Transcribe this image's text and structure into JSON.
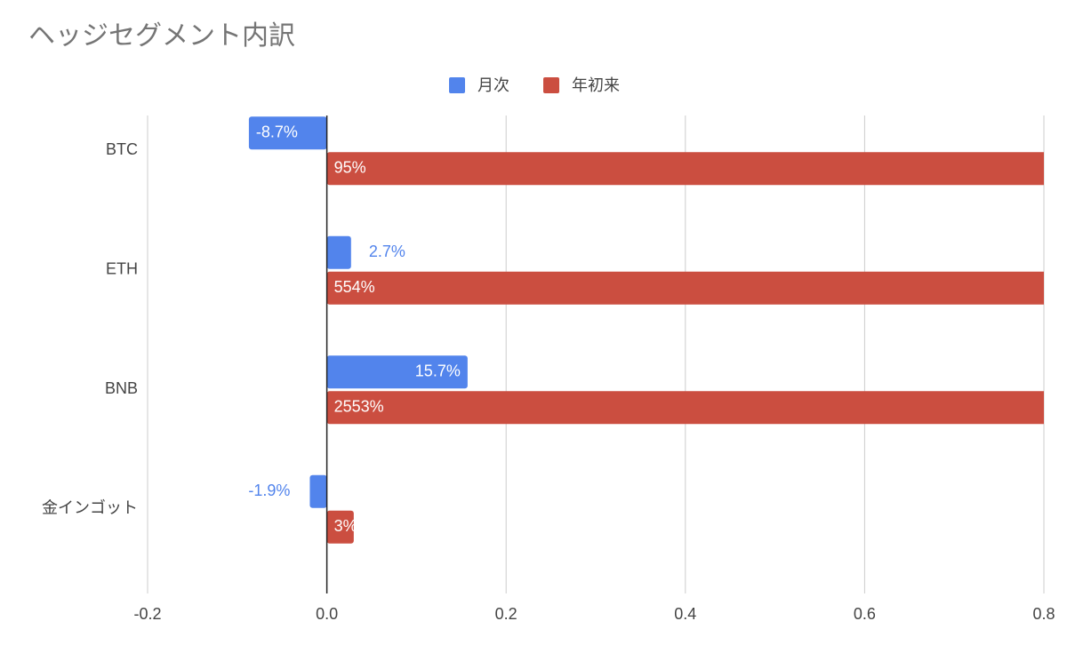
{
  "chart_data": {
    "type": "bar",
    "orientation": "horizontal",
    "title": "ヘッジセグメント内訳",
    "categories": [
      "BTC",
      "ETH",
      "BNB",
      "金インゴット"
    ],
    "series": [
      {
        "name": "月次",
        "color": "#5284ec",
        "values": [
          -0.087,
          0.027,
          0.157,
          -0.019
        ],
        "value_labels": [
          "-8.7%",
          "2.7%",
          "15.7%",
          "-1.9%"
        ]
      },
      {
        "name": "年初来",
        "color": "#cb4e40",
        "values": [
          0.95,
          5.54,
          25.53,
          0.03
        ],
        "value_labels": [
          "95%",
          "554%",
          "2553%",
          "3%"
        ]
      }
    ],
    "xlim": [
      -0.2,
      0.8
    ],
    "xticks": [
      -0.2,
      {
        "value": 0,
        "label": "0.0"
      },
      0.2,
      0.4,
      0.6,
      0.8
    ],
    "grid": true,
    "legend": "top"
  }
}
